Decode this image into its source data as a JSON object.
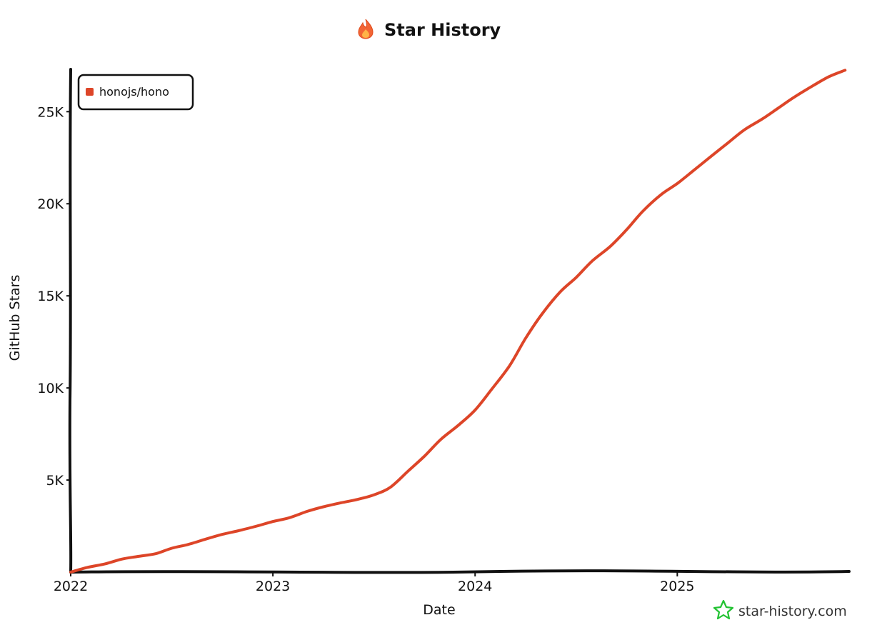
{
  "chart_data": {
    "type": "line",
    "title": "Star History",
    "xlabel": "Date",
    "ylabel": "GitHub Stars",
    "xlim": [
      2022.0,
      2025.85
    ],
    "ylim": [
      0,
      27300
    ],
    "x_ticks": [
      {
        "value": 2022,
        "label": "2022"
      },
      {
        "value": 2023,
        "label": "2023"
      },
      {
        "value": 2024,
        "label": "2024"
      },
      {
        "value": 2025,
        "label": "2025"
      }
    ],
    "y_ticks": [
      {
        "value": 5000,
        "label": "5K"
      },
      {
        "value": 10000,
        "label": "10K"
      },
      {
        "value": 15000,
        "label": "15K"
      },
      {
        "value": 20000,
        "label": "20K"
      },
      {
        "value": 25000,
        "label": "25K"
      }
    ],
    "grid": false,
    "legend_position": "top-left",
    "series": [
      {
        "name": "honojs/hono",
        "color": "#dd4528",
        "points": [
          [
            2022.0,
            0
          ],
          [
            2022.08,
            250
          ],
          [
            2022.17,
            450
          ],
          [
            2022.25,
            700
          ],
          [
            2022.33,
            850
          ],
          [
            2022.42,
            1000
          ],
          [
            2022.5,
            1300
          ],
          [
            2022.58,
            1500
          ],
          [
            2022.67,
            1800
          ],
          [
            2022.75,
            2050
          ],
          [
            2022.83,
            2250
          ],
          [
            2022.92,
            2500
          ],
          [
            2023.0,
            2750
          ],
          [
            2023.08,
            2950
          ],
          [
            2023.17,
            3300
          ],
          [
            2023.25,
            3550
          ],
          [
            2023.33,
            3750
          ],
          [
            2023.42,
            3950
          ],
          [
            2023.5,
            4200
          ],
          [
            2023.58,
            4600
          ],
          [
            2023.67,
            5500
          ],
          [
            2023.75,
            6300
          ],
          [
            2023.83,
            7200
          ],
          [
            2023.92,
            8000
          ],
          [
            2024.0,
            8800
          ],
          [
            2024.08,
            9900
          ],
          [
            2024.17,
            11200
          ],
          [
            2024.25,
            12700
          ],
          [
            2024.33,
            14000
          ],
          [
            2024.42,
            15200
          ],
          [
            2024.5,
            16000
          ],
          [
            2024.58,
            16900
          ],
          [
            2024.67,
            17700
          ],
          [
            2024.75,
            18600
          ],
          [
            2024.83,
            19600
          ],
          [
            2024.92,
            20500
          ],
          [
            2025.0,
            21100
          ],
          [
            2025.08,
            21800
          ],
          [
            2025.17,
            22600
          ],
          [
            2025.25,
            23300
          ],
          [
            2025.33,
            24000
          ],
          [
            2025.42,
            24600
          ],
          [
            2025.5,
            25200
          ],
          [
            2025.58,
            25800
          ],
          [
            2025.67,
            26400
          ],
          [
            2025.75,
            26900
          ],
          [
            2025.83,
            27250
          ]
        ]
      }
    ]
  },
  "watermark": {
    "text": "star-history.com",
    "icon": "star-outline-icon",
    "icon_color": "#22c232"
  },
  "title_icon": {
    "name": "fire-icon",
    "color": "#f26434"
  }
}
